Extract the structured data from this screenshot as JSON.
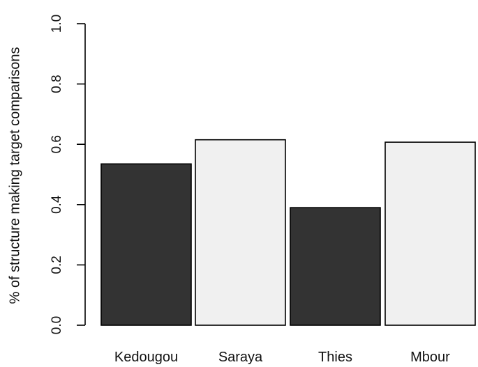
{
  "chart_data": {
    "type": "bar",
    "categories": [
      "Kedougou",
      "Saraya",
      "Thies",
      "Mbour"
    ],
    "values": [
      0.535,
      0.615,
      0.39,
      0.607
    ],
    "title": "",
    "xlabel": "",
    "ylabel": "% of structure making target comparisons",
    "ylim": [
      0,
      1
    ],
    "yticks": [
      "0.0",
      "0.2",
      "0.4",
      "0.6",
      "0.8",
      "1.0"
    ],
    "grid": false,
    "bar_colors": [
      "#333333",
      "#f0f0f0",
      "#333333",
      "#f0f0f0"
    ],
    "bar_stroke": "#000000"
  }
}
